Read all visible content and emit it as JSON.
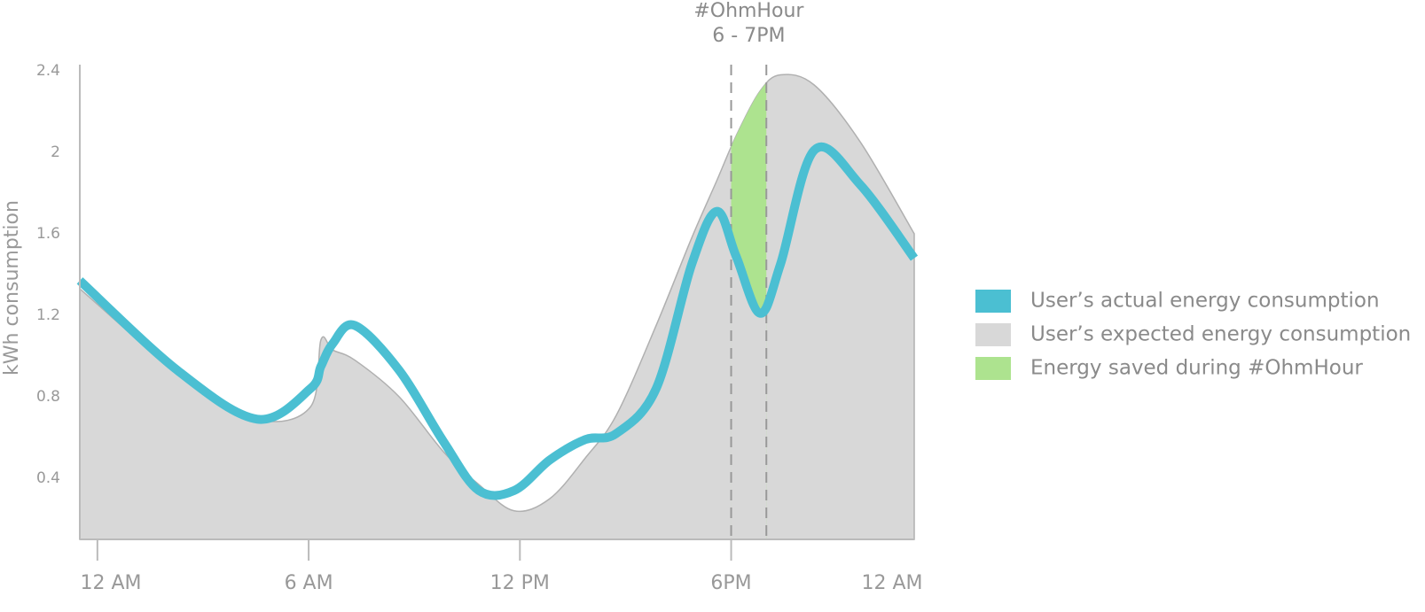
{
  "chart_data": {
    "type": "area-line",
    "y_label": "kWh consumption",
    "x": [
      -0.5,
      2.27,
      4.54,
      6.05,
      6.35,
      6.68,
      7.31,
      8.57,
      9.83,
      10.83,
      11.84,
      12.85,
      13.86,
      14.74,
      15.87,
      16.88,
      17.59,
      18.14,
      18.82,
      19.4,
      20.36,
      21.67,
      23.2
    ],
    "series": [
      {
        "name": "User’s actual energy consumption",
        "color": "#4bbfd2",
        "style": "line",
        "values": [
          1.37,
          0.93,
          0.69,
          0.84,
          0.95,
          1.06,
          1.15,
          0.93,
          0.58,
          0.34,
          0.34,
          0.49,
          0.59,
          0.62,
          0.84,
          1.45,
          1.71,
          1.49,
          1.21,
          1.45,
          2.01,
          1.84,
          1.48
        ]
      },
      {
        "name": "User’s expected energy consumption",
        "color": "#d8d8d8",
        "style": "area",
        "values": [
          1.33,
          0.92,
          0.69,
          0.75,
          1.08,
          1.03,
          0.98,
          0.8,
          0.53,
          0.37,
          0.24,
          0.3,
          0.5,
          0.71,
          1.15,
          1.58,
          1.86,
          2.08,
          2.3,
          2.38,
          2.33,
          2.05,
          1.6
        ]
      }
    ],
    "highlight": {
      "name": "Energy saved during #OhmHour",
      "color": "#ade38f",
      "label": "#OhmHour",
      "time_label": "6 - 7PM",
      "start": 18,
      "end": 19
    },
    "xlim": [
      -0.5,
      23.2
    ],
    "xticks": [
      {
        "value": 0,
        "label": "12 AM"
      },
      {
        "value": 6,
        "label": "6 AM"
      },
      {
        "value": 12,
        "label": "12 PM"
      },
      {
        "value": 18,
        "label": "6PM"
      },
      {
        "value": 24,
        "label": "12 AM"
      }
    ],
    "ylim": [
      0.1,
      2.43
    ],
    "yticks": [
      0.4,
      0.8,
      1.2,
      1.6,
      2.0,
      2.4
    ]
  }
}
